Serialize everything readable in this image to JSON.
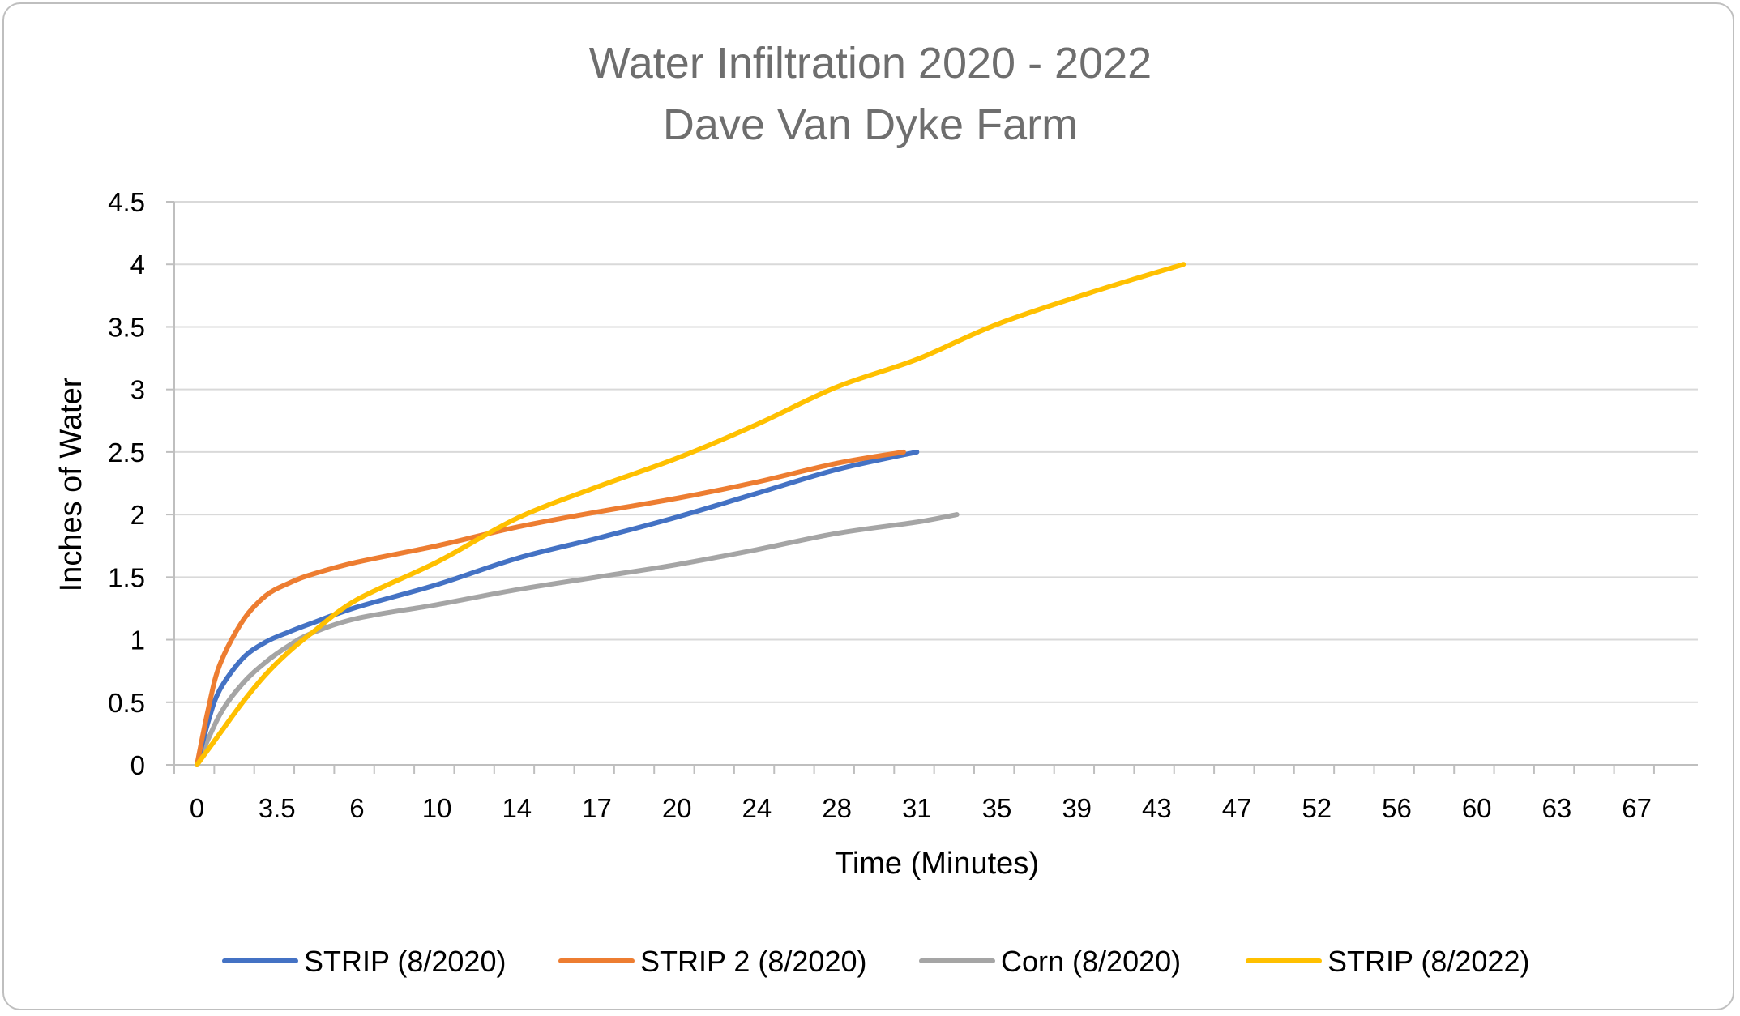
{
  "chart_data": {
    "type": "line",
    "title": "Water Infiltration 2020 - 2022",
    "subtitle": "Dave Van Dyke Farm",
    "xlabel": "Time (Minutes)",
    "ylabel": "Inches of Water",
    "x_tick_labels": [
      "0",
      "3.5",
      "6",
      "10",
      "14",
      "17",
      "20",
      "24",
      "28",
      "31",
      "35",
      "39",
      "43",
      "47",
      "52",
      "56",
      "60",
      "63",
      "67"
    ],
    "y_ticks": [
      "0",
      "0.5",
      "1",
      "1.5",
      "2",
      "2.5",
      "3",
      "3.5",
      "4",
      "4.5"
    ],
    "ylim": [
      0,
      4.5
    ],
    "grid": true,
    "legend_position": "bottom",
    "series": [
      {
        "name": "STRIP (8/2020)",
        "color": "#4472c4",
        "x": [
          0,
          0.5,
          1,
          2,
          3,
          4,
          5,
          7,
          10,
          14,
          17,
          20,
          24,
          28,
          31
        ],
        "y": [
          0,
          0.35,
          0.6,
          0.85,
          0.98,
          1.06,
          1.13,
          1.26,
          1.44,
          1.65,
          1.81,
          1.98,
          2.17,
          2.36,
          2.5
        ]
      },
      {
        "name": "STRIP 2 (8/2020)",
        "color": "#ed7d31",
        "x": [
          0,
          0.5,
          1,
          2,
          3,
          4,
          5,
          7,
          10,
          14,
          17,
          20,
          24,
          28,
          30.5
        ],
        "y": [
          0,
          0.45,
          0.8,
          1.15,
          1.35,
          1.45,
          1.52,
          1.62,
          1.75,
          1.9,
          2.02,
          2.13,
          2.26,
          2.41,
          2.5
        ]
      },
      {
        "name": "Corn (8/2020)",
        "color": "#a5a5a5",
        "x": [
          0,
          1,
          2,
          3,
          4,
          5,
          7,
          10,
          14,
          17,
          20,
          24,
          28,
          31,
          33
        ],
        "y": [
          0,
          0.4,
          0.65,
          0.82,
          0.95,
          1.05,
          1.17,
          1.28,
          1.4,
          1.5,
          1.6,
          1.72,
          1.85,
          1.94,
          2.0
        ]
      },
      {
        "name": "STRIP (8/2022)",
        "color": "#ffc000",
        "x": [
          0,
          1,
          2,
          3,
          4,
          5,
          7,
          10,
          14,
          17,
          20,
          24,
          28,
          31,
          35,
          39,
          43
        ],
        "y": [
          0,
          0.25,
          0.5,
          0.72,
          0.9,
          1.05,
          1.32,
          1.62,
          1.97,
          2.22,
          2.45,
          2.72,
          3.02,
          3.24,
          3.52,
          3.79,
          4.0
        ]
      }
    ]
  }
}
